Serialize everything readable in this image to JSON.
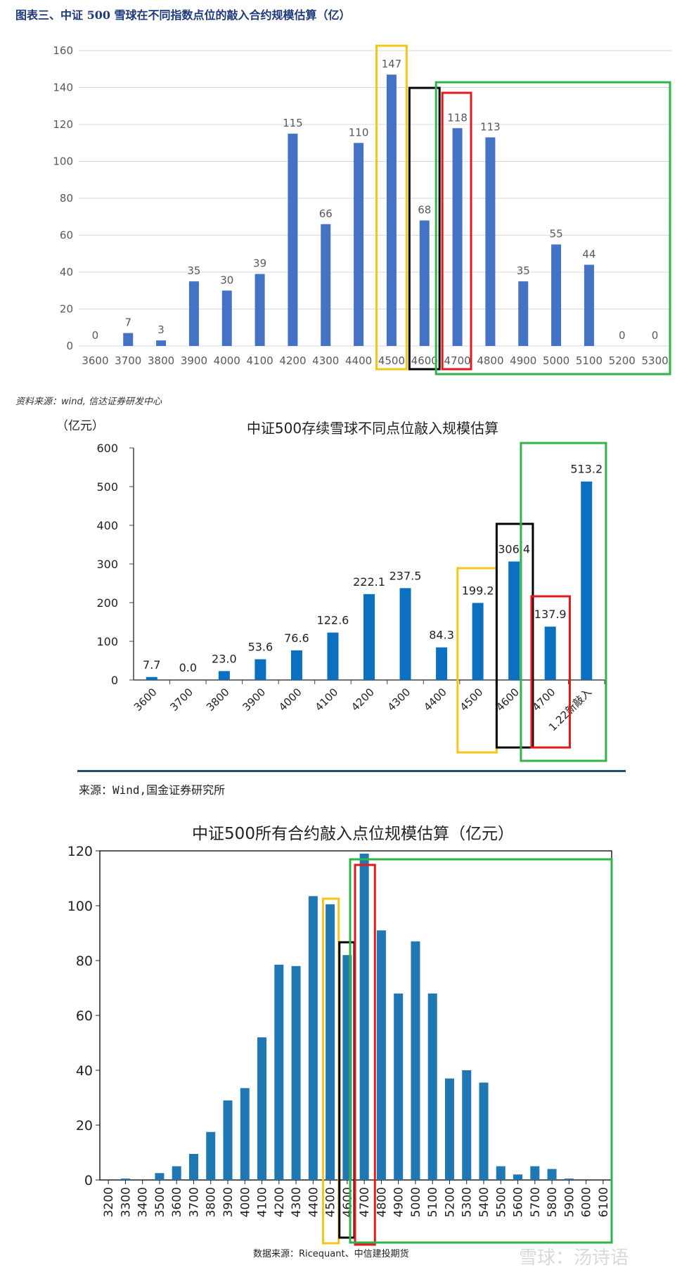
{
  "figure1": {
    "title": "图表三、中证 500 雪球在不同指数点位的敲入合约规模估算（亿）",
    "source": "资料来源：wind, 信达证券研发中心"
  },
  "figure2": {
    "unit_label": "（亿元）",
    "source": "来源：Wind,国金证券研究所"
  },
  "figure3": {
    "source": "数据来源：Ricequant、中信建投期货"
  },
  "watermark": "雪球：汤诗语",
  "colors": {
    "bar1": "#4472c4",
    "bar2": "#0a70bf",
    "bar3": "#1f77b4",
    "yellow": "#f5c518",
    "black": "#000000",
    "red": "#e31a1c",
    "green": "#2fb34a",
    "grid": "#d9d9d9"
  },
  "chart_data": [
    {
      "type": "bar",
      "title": "",
      "categories": [
        "3600",
        "3700",
        "3800",
        "3900",
        "4000",
        "4100",
        "4200",
        "4300",
        "4400",
        "4500",
        "4600",
        "4700",
        "4800",
        "4900",
        "5000",
        "5100",
        "5200",
        "5300"
      ],
      "values": [
        0,
        7,
        3,
        35,
        30,
        39,
        115,
        66,
        110,
        147,
        68,
        118,
        113,
        35,
        55,
        44,
        0,
        0
      ],
      "ylim": [
        0,
        160
      ],
      "yticks": [
        0,
        20,
        40,
        60,
        80,
        100,
        120,
        140,
        160
      ],
      "grid": true
    },
    {
      "type": "bar",
      "title": "中证500存续雪球不同点位敲入规模估算",
      "categories": [
        "3600",
        "3700",
        "3800",
        "3900",
        "4000",
        "4100",
        "4200",
        "4300",
        "4400",
        "4500",
        "4600",
        "4700",
        "1.22新敲入"
      ],
      "values": [
        7.7,
        0.0,
        23.0,
        53.6,
        76.6,
        122.6,
        222.1,
        237.5,
        84.3,
        199.2,
        306.4,
        137.9,
        513.2
      ],
      "value_labels": [
        "7.7",
        "0.0",
        "23.0",
        "53.6",
        "76.6",
        "122.6",
        "222.1",
        "237.5",
        "84.3",
        "199.2",
        "306.4",
        "137.9",
        "513.2"
      ],
      "ylim": [
        0,
        600
      ],
      "yticks": [
        0,
        100,
        200,
        300,
        400,
        500,
        600
      ],
      "grid": false
    },
    {
      "type": "bar",
      "title": "中证500所有合约敲入点位规模估算（亿元）",
      "categories": [
        "3200",
        "3300",
        "3400",
        "3500",
        "3600",
        "3700",
        "3800",
        "3900",
        "4000",
        "4100",
        "4200",
        "4300",
        "4400",
        "4500",
        "4600",
        "4700",
        "4800",
        "4900",
        "5000",
        "5100",
        "5200",
        "5300",
        "5400",
        "5500",
        "5600",
        "5700",
        "5800",
        "5900",
        "6000",
        "6100"
      ],
      "values": [
        0,
        0.5,
        0,
        2.5,
        5,
        9.5,
        17.5,
        29,
        33.5,
        52,
        78.5,
        78,
        103.5,
        100.5,
        82,
        119,
        91,
        68,
        87,
        68,
        37,
        40,
        35.5,
        5,
        2,
        5,
        4,
        0.5,
        0,
        0
      ],
      "ylim": [
        0,
        120
      ],
      "yticks": [
        0,
        20,
        40,
        60,
        80,
        100,
        120
      ],
      "grid": false
    }
  ]
}
